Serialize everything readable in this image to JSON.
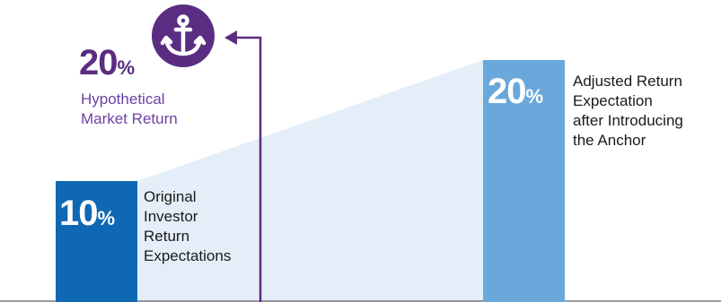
{
  "colors": {
    "original_bar": "#0f68b4",
    "adjusted_bar": "#6aa8dc",
    "shading": "#e4eef9",
    "purple": "#5a2d82",
    "axis": "#7a7a7a"
  },
  "chart_data": {
    "type": "bar",
    "categories": [
      "Original Investor Return Expectations",
      "Adjusted Return Expectation after Introducing the Anchor"
    ],
    "values": [
      10,
      20
    ],
    "anchor_value": 20,
    "unit": "%"
  },
  "original": {
    "value": "10",
    "unit": "%",
    "label": "Original\nInvestor\nReturn\nExpectations"
  },
  "adjusted": {
    "value": "20",
    "unit": "%",
    "label": "Adjusted Return\nExpectation\nafter Introducing\nthe Anchor"
  },
  "market": {
    "value": "20",
    "unit": "%",
    "label": "Hypothetical\nMarket Return",
    "icon": "anchor-icon"
  }
}
